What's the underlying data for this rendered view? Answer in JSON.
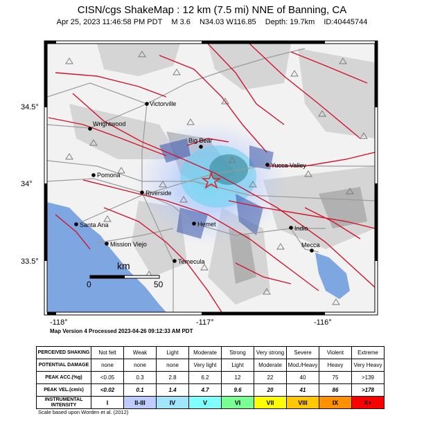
{
  "header": {
    "title": "CISN/cgs ShakeMap : 12 km (7.5 mi) NNE of Banning, CA",
    "date": "Apr 25, 2023 11:46:58 PM PDT",
    "magnitude": "M 3.6",
    "location": "N34.03 W116.85",
    "depth": "Depth: 19.7km",
    "id": "ID:40445744"
  },
  "map": {
    "lat_labels": [
      "34.5°",
      "34°",
      "33.5°"
    ],
    "lon_labels": [
      "-118°",
      "-117°",
      "-116°"
    ],
    "cities": [
      "Victorville",
      "Wrightwood",
      "Big Bear",
      "Yucca Valley",
      "Pomona",
      "Riverside",
      "Santa Ana",
      "Hemet",
      "Indio",
      "Mission Viejo",
      "Mecca",
      "Temecula"
    ],
    "scale_bar": {
      "unit": "km",
      "start": "0",
      "end": "50"
    },
    "colors": {
      "water": "#7ea6e0",
      "fault": "#d0142c",
      "road": "#9a9a9a",
      "epicenter": "#e0242c"
    }
  },
  "version_text": "Map Version 4 Processed 2023-04-26 09:12:33 AM PDT",
  "legend": {
    "rows": [
      {
        "label": "PERCEIVED SHAKING",
        "values": [
          "Not felt",
          "Weak",
          "Light",
          "Moderate",
          "Strong",
          "Very strong",
          "Severe",
          "Violent",
          "Extreme"
        ]
      },
      {
        "label": "POTENTIAL DAMAGE",
        "values": [
          "none",
          "none",
          "none",
          "Very light",
          "Light",
          "Moderate",
          "Mod./Heavy",
          "Heavy",
          "Very Heavy"
        ]
      },
      {
        "label": "PEAK ACC.(%g)",
        "values": [
          "<0.05",
          "0.3",
          "2.8",
          "6.2",
          "12",
          "22",
          "40",
          "75",
          ">139"
        ]
      },
      {
        "label": "PEAK VEL.(cm/s)",
        "values": [
          "<0.02",
          "0.1",
          "1.4",
          "4.7",
          "9.6",
          "20",
          "41",
          "86",
          ">178"
        ]
      },
      {
        "label": "INSTRUMENTAL INTENSITY",
        "values": [
          "I",
          "II-III",
          "IV",
          "V",
          "VI",
          "VII",
          "VIII",
          "IX",
          "X+"
        ]
      }
    ],
    "intensity_colors": [
      "#ffffff",
      "#bfccff",
      "#a0e6ff",
      "#80ffff",
      "#7aff93",
      "#ffff00",
      "#ffc800",
      "#ff9100",
      "#ff0000"
    ],
    "note": "Scale based upon Worden et al. (2012)"
  }
}
